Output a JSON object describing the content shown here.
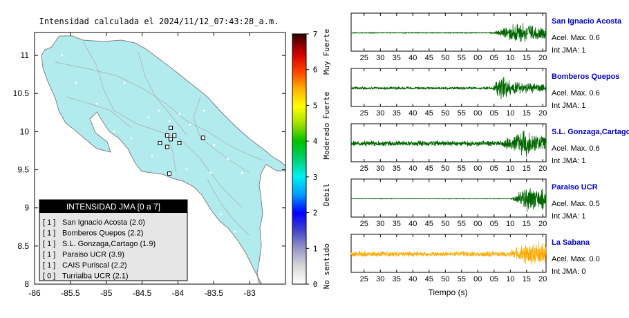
{
  "map": {
    "title": "Intensidad calculada el 2024/11/12_07:43:28_a.m.",
    "lon_ticks": [
      -86,
      -85.5,
      -85,
      -84.5,
      -84,
      -83.5,
      -83
    ],
    "lat_ticks": [
      8,
      8.5,
      9,
      9.5,
      10,
      10.5,
      11
    ],
    "xlim": [
      -86,
      -82.5
    ],
    "ylim": [
      8,
      11.3
    ],
    "land_color": "#b2ebee",
    "station_markers": [
      [
        -84.1,
        10.05
      ],
      [
        -84.15,
        9.95
      ],
      [
        -84.05,
        9.95
      ],
      [
        -83.98,
        9.85
      ],
      [
        -84.1,
        9.9
      ],
      [
        -84.25,
        9.85
      ],
      [
        -84.15,
        9.8
      ],
      [
        -83.65,
        9.92
      ],
      [
        -84.12,
        9.45
      ]
    ]
  },
  "legend": {
    "title": "INTENSIDAD JMA [0 a 7]",
    "items": [
      {
        "value": "[ 1 ]",
        "label": "San Ignacio Acosta (2.0)"
      },
      {
        "value": "[ 1 ]",
        "label": "Bomberos Quepos (2.2)"
      },
      {
        "value": "[ 1 ]",
        "label": "S.L. Gonzaga,Cartago (1.9)"
      },
      {
        "value": "[ 1 ]",
        "label": "Paraiso UCR (3.9)"
      },
      {
        "value": "[ 1 ]",
        "label": "CAIS Puriscal (2.2)"
      },
      {
        "value": "[ 0 ]",
        "label": "Turrialba UCR (2.1)"
      }
    ]
  },
  "colorbar": {
    "ticks": [
      "0",
      "1",
      "2",
      "3",
      "4",
      "5",
      "6",
      "7"
    ],
    "labels": [
      {
        "text": "No sentido",
        "at": 0.5
      },
      {
        "text": "Debil",
        "at": 2.5
      },
      {
        "text": "Moderado",
        "at": 4
      },
      {
        "text": "Fuerte",
        "at": 5
      },
      {
        "text": "Muy Fuerte",
        "at": 6.5
      }
    ]
  },
  "chart_data": {
    "type": "line",
    "x_ticks": [
      "25",
      "30",
      "35",
      "40",
      "45",
      "50",
      "55",
      "00",
      "05",
      "10",
      "15",
      "20"
    ],
    "xlim": [
      21,
      81
    ],
    "xlabel": "Tiempo (s)",
    "series": [
      {
        "name": "San Ignacio Acosta",
        "acel": "Acel. Max. 0.6",
        "int": "Int JMA: 1",
        "color": "#006600",
        "noise": 0.02,
        "onset": 64.5,
        "peak": 73,
        "peak_amp": 0.8,
        "tail": 0.35
      },
      {
        "name": "Bomberos Quepos",
        "acel": "Acel. Max. 0.6",
        "int": "Int JMA: 1",
        "color": "#006600",
        "noise": 0.06,
        "onset": 64,
        "peak": 67,
        "peak_amp": 0.85,
        "tail": 0.3
      },
      {
        "name": "S.L. Gonzaga,Cartago",
        "acel": "Acel. Max. 0.6",
        "int": "Int JMA: 1",
        "color": "#006600",
        "noise": 0.12,
        "onset": 65,
        "peak": 75,
        "peak_amp": 0.9,
        "tail": 0.5
      },
      {
        "name": "Paraiso UCR",
        "acel": "Acel. Max. 0.5",
        "int": "Int JMA: 1",
        "color": "#006600",
        "noise": 0.01,
        "onset": 70,
        "peak": 75,
        "peak_amp": 0.85,
        "tail": 0.6
      },
      {
        "name": "La Sabana",
        "acel": "Acel. Max. 0.0",
        "int": "Int JMA: 0",
        "color": "#ffaa00",
        "noise": 0.12,
        "onset": 66,
        "peak": 77,
        "peak_amp": 0.75,
        "tail": 0.65
      }
    ]
  }
}
